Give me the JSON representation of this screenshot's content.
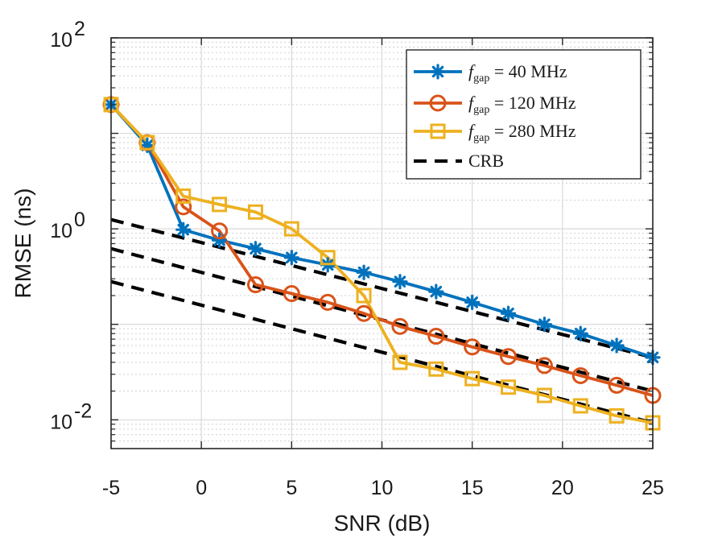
{
  "chart_data": {
    "type": "line",
    "title": "",
    "xlabel": "SNR (dB)",
    "ylabel": "RMSE (ns)",
    "y_scale": "log",
    "xlim": [
      -5,
      25
    ],
    "ylim": [
      0.005,
      100
    ],
    "x_ticks": [
      -5,
      0,
      5,
      10,
      15,
      20,
      25
    ],
    "x_tick_labels": [
      "-5",
      "0",
      "5",
      "10",
      "15",
      "20",
      "25"
    ],
    "y_ticks": [
      0.01,
      1,
      100
    ],
    "y_tick_labels": [
      {
        "base": "10",
        "exp": "-2"
      },
      {
        "base": "10",
        "exp": "0"
      },
      {
        "base": "10",
        "exp": "2"
      }
    ],
    "grid": true,
    "legend_position": "top-right",
    "x": [
      -5,
      -3,
      -1,
      1,
      3,
      5,
      7,
      9,
      11,
      13,
      15,
      17,
      19,
      21,
      23,
      25
    ],
    "series": [
      {
        "name": "f_gap = 40 MHz",
        "legend": {
          "symbol": "f",
          "subscript": "gap",
          "rest": " = 40 MHz"
        },
        "color": "#0072BD",
        "marker": "asterisk",
        "values": [
          20,
          7.5,
          0.98,
          0.76,
          0.62,
          0.5,
          0.42,
          0.35,
          0.28,
          0.22,
          0.17,
          0.13,
          0.1,
          0.08,
          0.06,
          0.045
        ]
      },
      {
        "name": "f_gap = 120 MHz",
        "legend": {
          "symbol": "f",
          "subscript": "gap",
          "rest": " = 120 MHz"
        },
        "color": "#D95319",
        "marker": "circle",
        "values": [
          20,
          8,
          1.7,
          0.95,
          0.26,
          0.21,
          0.17,
          0.13,
          0.095,
          0.075,
          0.058,
          0.046,
          0.037,
          0.029,
          0.023,
          0.018
        ]
      },
      {
        "name": "f_gap = 280 MHz",
        "legend": {
          "symbol": "f",
          "subscript": "gap",
          "rest": " = 280 MHz"
        },
        "color": "#EDB120",
        "marker": "square",
        "values": [
          20,
          8,
          2.2,
          1.8,
          1.5,
          1.0,
          0.5,
          0.2,
          0.04,
          0.034,
          0.027,
          0.022,
          0.018,
          0.014,
          0.011,
          0.0093
        ]
      },
      {
        "name": "CRB",
        "legend": {
          "symbol": "",
          "subscript": "",
          "rest": "CRB"
        },
        "color": "#000000",
        "marker": "none",
        "dashed": true,
        "lines": [
          {
            "x": [
              -5,
              25
            ],
            "y": [
              1.25,
              0.045
            ]
          },
          {
            "x": [
              -5,
              25
            ],
            "y": [
              0.62,
              0.02
            ]
          },
          {
            "x": [
              -5,
              25
            ],
            "y": [
              0.28,
              0.0093
            ]
          }
        ]
      }
    ]
  }
}
